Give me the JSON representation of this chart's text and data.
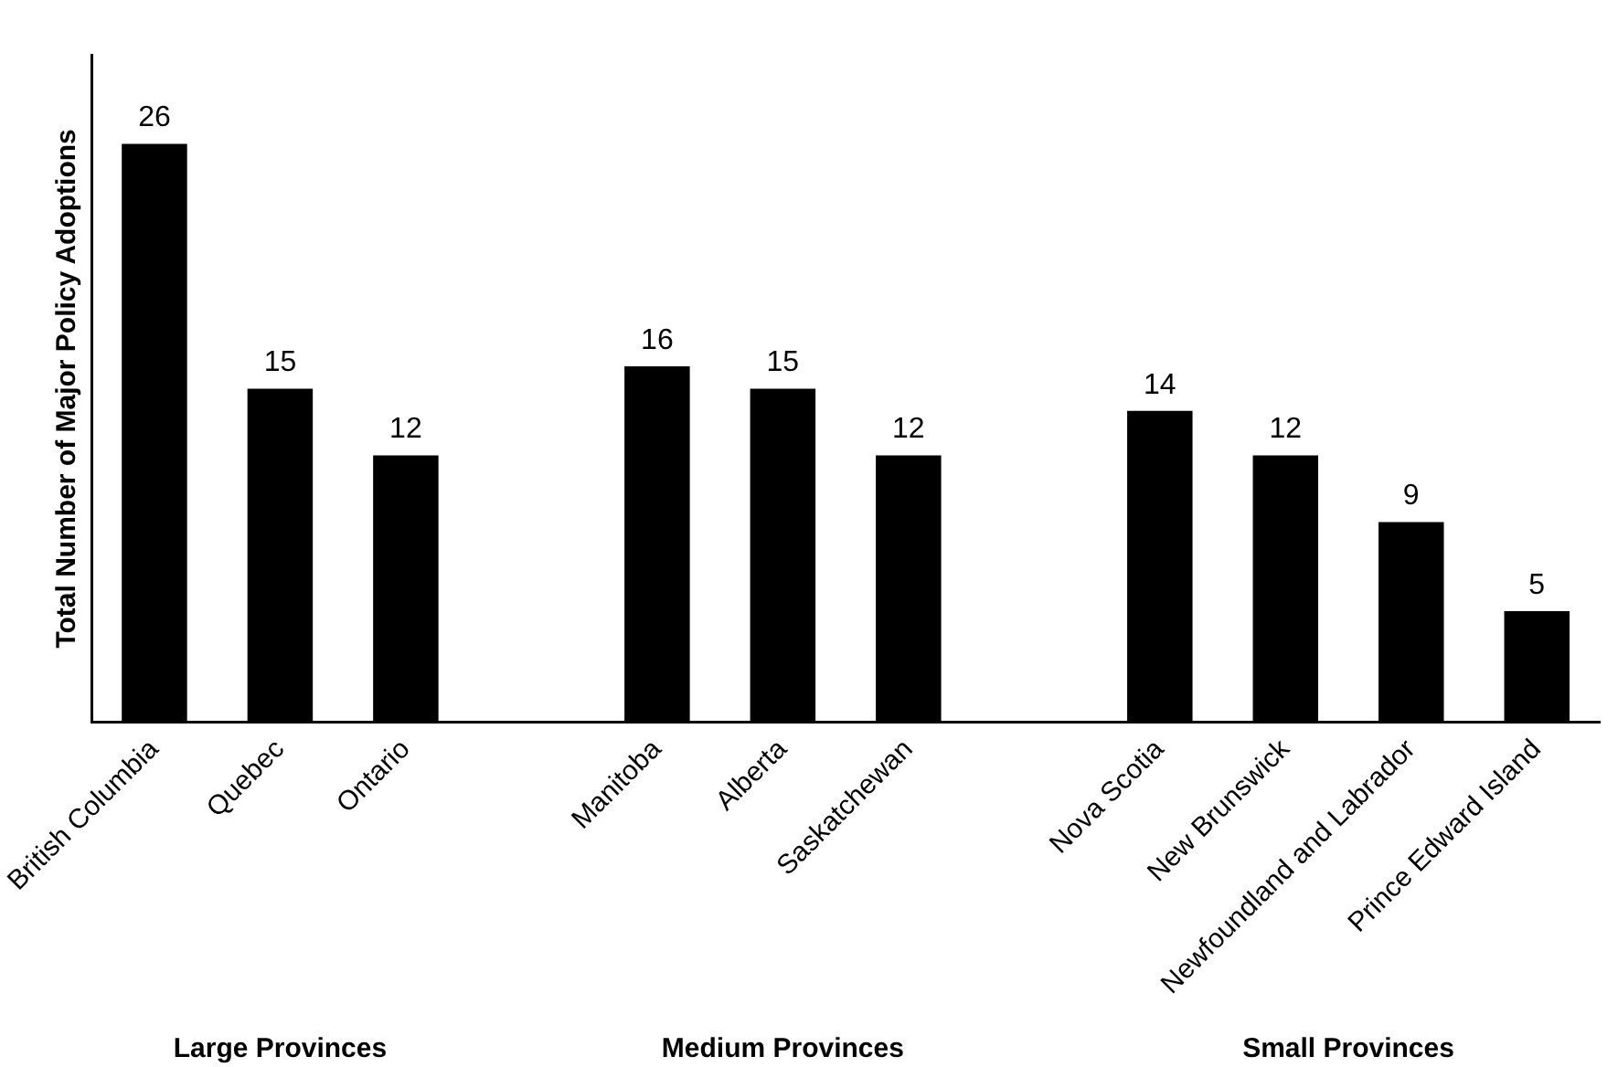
{
  "chart_data": {
    "type": "bar",
    "ylabel": "Total Number of Major Policy Adoptions",
    "categories": [
      "British Columbia",
      "Quebec",
      "Ontario",
      null,
      "Manitoba",
      "Alberta",
      "Saskatchewan",
      null,
      "Nova Scotia",
      "New Brunswick",
      "Newfoundland and Labrador",
      "Prince Edward Island"
    ],
    "values": [
      26,
      15,
      12,
      null,
      16,
      15,
      12,
      null,
      14,
      12,
      9,
      5
    ],
    "color": "#000000",
    "data_labels": true,
    "grid": false,
    "legend": false,
    "tick_labels": "x",
    "annotations": [
      "Large Provinces",
      "Medium Provinces",
      "Small Provinces"
    ]
  }
}
